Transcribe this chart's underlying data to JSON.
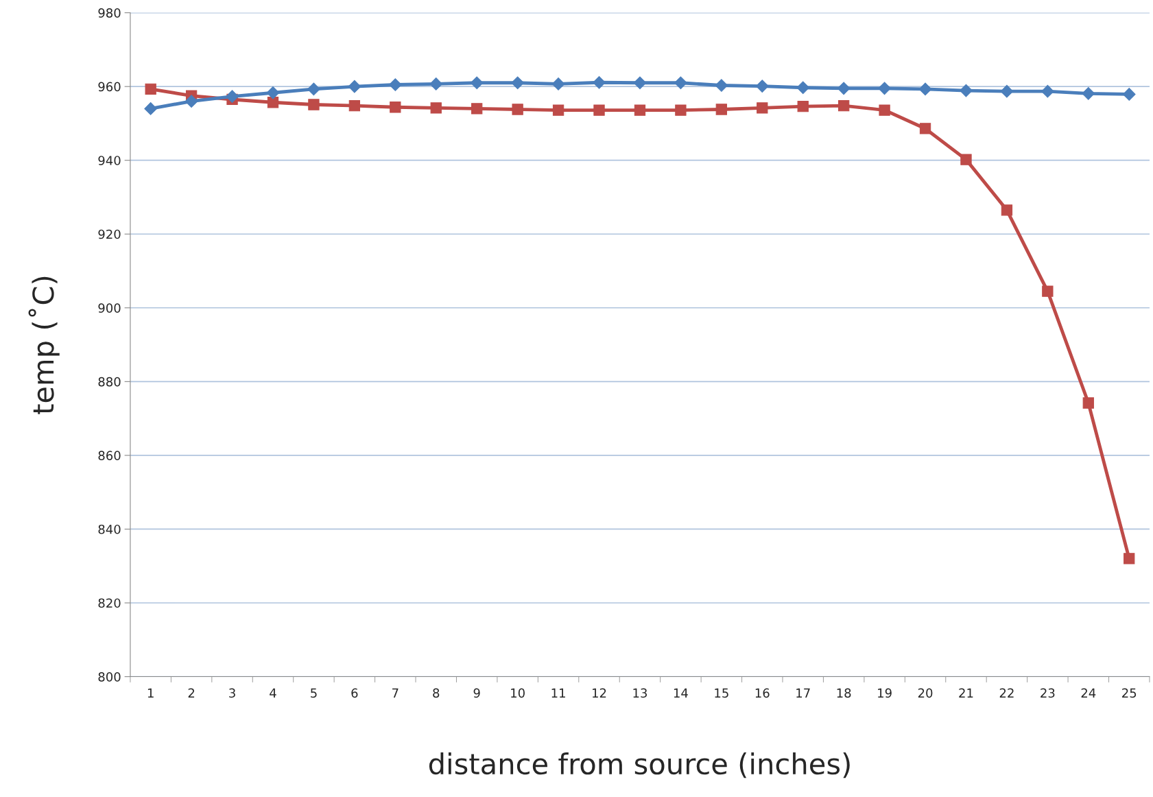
{
  "chart_data": {
    "type": "line",
    "xlabel": "distance from source (inches)",
    "ylabel": "temp (˚C)",
    "categories": [
      "1",
      "2",
      "3",
      "4",
      "5",
      "6",
      "7",
      "8",
      "9",
      "10",
      "11",
      "12",
      "13",
      "14",
      "15",
      "16",
      "17",
      "18",
      "19",
      "20",
      "21",
      "22",
      "23",
      "24",
      "25"
    ],
    "series": [
      {
        "color": "#4a7ebb",
        "marker": "diamond",
        "values": [
          954,
          956,
          957.3,
          958.3,
          959.3,
          960,
          960.5,
          960.7,
          961,
          961,
          960.7,
          961.1,
          961,
          961,
          960.3,
          960.1,
          959.7,
          959.5,
          959.5,
          959.3,
          958.9,
          958.7,
          958.7,
          958.1,
          957.9
        ]
      },
      {
        "color": "#be4b48",
        "marker": "square",
        "values": [
          959.3,
          957.5,
          956.5,
          955.7,
          955.1,
          954.8,
          954.4,
          954.2,
          954,
          953.8,
          953.6,
          953.6,
          953.6,
          953.6,
          953.8,
          954.2,
          954.6,
          954.8,
          953.6,
          948.6,
          940.2,
          926.5,
          904.5,
          874.2,
          832
        ]
      }
    ],
    "ylim": [
      800,
      980
    ],
    "yticks": [
      800,
      820,
      840,
      860,
      880,
      900,
      920,
      940,
      960,
      980
    ],
    "grid": "y",
    "legend": false
  }
}
